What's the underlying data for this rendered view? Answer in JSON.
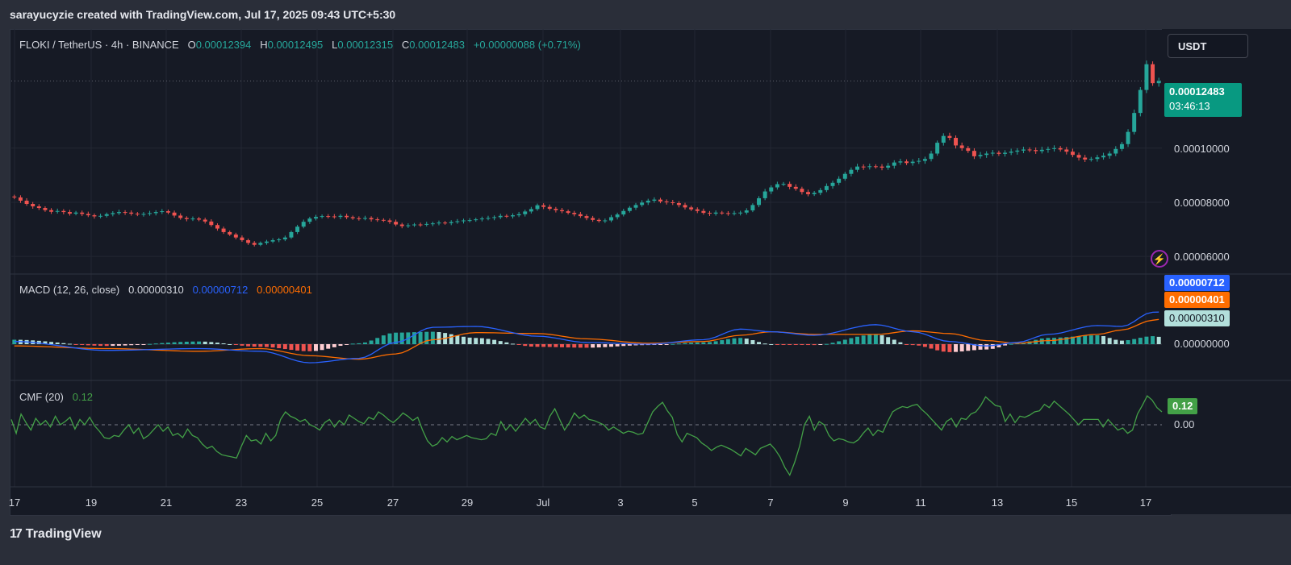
{
  "attribution": "sarayucyzie created with TradingView.com, Jul 17, 2025 09:43 UTC+5:30",
  "symbol": {
    "name": "FLOKI / TetherUS · 4h · BINANCE",
    "o_label": "O",
    "o_value": "0.00012394",
    "h_label": "H",
    "h_value": "0.00012495",
    "l_label": "L",
    "l_value": "0.00012315",
    "c_label": "C",
    "c_value": "0.00012483",
    "change": "+0.00000088 (+0.71%)"
  },
  "currency_button": "USDT",
  "last_price": {
    "value": "0.00012483",
    "countdown": "03:46:13"
  },
  "macd": {
    "label": "MACD (12, 26, close)",
    "histogram": "0.00000310",
    "macd_line": "0.00000712",
    "signal_line": "0.00000401",
    "zero_label": "0.00000000"
  },
  "cmf": {
    "label": "CMF (20)",
    "value": "0.12",
    "zero_label": "0.00"
  },
  "footer": {
    "brand": "TradingView"
  },
  "colors": {
    "up": "#26a69a",
    "down": "#ef5350",
    "macd": "#2962ff",
    "signal": "#ff6d00",
    "cmf": "#43a047",
    "hist_up_strong": "#26a69a",
    "hist_up_weak": "#b2dfdb",
    "hist_down_strong": "#ef5350",
    "hist_down_weak": "#ffcdd2"
  },
  "chart_data": [
    {
      "type": "candlestick",
      "title": "FLOKI / TetherUS · 4h · BINANCE",
      "x_tick_labels": [
        "17",
        "19",
        "21",
        "23",
        "25",
        "27",
        "29",
        "Jul",
        "3",
        "5",
        "7",
        "9",
        "11",
        "13",
        "15",
        "17"
      ],
      "y_tick_labels": [
        "0.00010000",
        "0.00008000",
        "0.00006000"
      ],
      "y_range": [
        5.35e-05,
        0.000144
      ],
      "close_series": [
        8.18e-05,
        8.06e-05,
        7.94e-05,
        7.85e-05,
        7.79e-05,
        7.71e-05,
        7.65e-05,
        7.68e-05,
        7.64e-05,
        7.58e-05,
        7.62e-05,
        7.57e-05,
        7.52e-05,
        7.48e-05,
        7.5e-05,
        7.56e-05,
        7.6e-05,
        7.64e-05,
        7.62e-05,
        7.58e-05,
        7.55e-05,
        7.57e-05,
        7.6e-05,
        7.64e-05,
        7.67e-05,
        7.62e-05,
        7.51e-05,
        7.42e-05,
        7.38e-05,
        7.4e-05,
        7.36e-05,
        7.29e-05,
        7.16e-05,
        7.03e-05,
        6.9e-05,
        6.81e-05,
        6.7e-05,
        6.6e-05,
        6.5e-05,
        6.43e-05,
        6.5e-05,
        6.55e-05,
        6.6e-05,
        6.63e-05,
        6.7e-05,
        6.9e-05,
        7.1e-05,
        7.28e-05,
        7.4e-05,
        7.46e-05,
        7.49e-05,
        7.48e-05,
        7.46e-05,
        7.5e-05,
        7.45e-05,
        7.41e-05,
        7.4e-05,
        7.42e-05,
        7.37e-05,
        7.35e-05,
        7.33e-05,
        7.28e-05,
        7.18e-05,
        7.12e-05,
        7.15e-05,
        7.18e-05,
        7.17e-05,
        7.2e-05,
        7.22e-05,
        7.25e-05,
        7.23e-05,
        7.27e-05,
        7.3e-05,
        7.33e-05,
        7.34e-05,
        7.37e-05,
        7.4e-05,
        7.42e-05,
        7.45e-05,
        7.5e-05,
        7.48e-05,
        7.52e-05,
        7.56e-05,
        7.66e-05,
        7.75e-05,
        7.89e-05,
        7.83e-05,
        7.76e-05,
        7.71e-05,
        7.67e-05,
        7.61e-05,
        7.56e-05,
        7.49e-05,
        7.42e-05,
        7.35e-05,
        7.31e-05,
        7.33e-05,
        7.45e-05,
        7.55e-05,
        7.68e-05,
        7.8e-05,
        7.9e-05,
        7.99e-05,
        8.06e-05,
        8.1e-05,
        8.03e-05,
        8e-05,
        7.97e-05,
        7.9e-05,
        7.81e-05,
        7.74e-05,
        7.68e-05,
        7.61e-05,
        7.58e-05,
        7.62e-05,
        7.6e-05,
        7.58e-05,
        7.6e-05,
        7.62e-05,
        7.7e-05,
        7.9e-05,
        8.15e-05,
        8.4e-05,
        8.55e-05,
        8.67e-05,
        8.68e-05,
        8.57e-05,
        8.5e-05,
        8.38e-05,
        8.3e-05,
        8.35e-05,
        8.45e-05,
        8.6e-05,
        8.72e-05,
        8.87e-05,
        9.05e-05,
        9.2e-05,
        9.32e-05,
        9.3e-05,
        9.33e-05,
        9.32e-05,
        9.28e-05,
        9.35e-05,
        9.47e-05,
        9.51e-05,
        9.45e-05,
        9.5e-05,
        9.53e-05,
        9.6e-05,
        9.8e-05,
        0.000102,
        0.0001045,
        0.0001038,
        0.000101,
        0.0001,
        9.9e-05,
        9.7e-05,
        9.75e-05,
        9.8e-05,
        9.83e-05,
        9.79e-05,
        9.83e-05,
        9.87e-05,
        9.91e-05,
        9.95e-05,
        9.93e-05,
        9.89e-05,
        9.94e-05,
        9.97e-05,
        0.0001,
        9.95e-05,
        9.87e-05,
        9.75e-05,
        9.65e-05,
        9.58e-05,
        9.6e-05,
        9.66e-05,
        9.72e-05,
        9.8e-05,
        9.97e-05,
        0.0001015,
        0.000106,
        0.000113,
        0.0001215,
        0.000131,
        0.000124,
        0.0001248
      ]
    },
    {
      "type": "line",
      "title": "MACD (12, 26, close)",
      "y_tick_labels": [
        "0.00000000"
      ],
      "series": [
        {
          "name": "MACD",
          "anchors": [
            [
              0,
              0.3
            ],
            [
              15,
              -0.7
            ],
            [
              30,
              -0.5
            ],
            [
              40,
              -0.8
            ],
            [
              48,
              -2.1
            ],
            [
              56,
              -1.6
            ],
            [
              62,
              0.2
            ],
            [
              68,
              1.9
            ],
            [
              75,
              2.0
            ],
            [
              85,
              0.9
            ],
            [
              93,
              0.2
            ],
            [
              103,
              0.0
            ],
            [
              112,
              0.5
            ],
            [
              118,
              1.7
            ],
            [
              123,
              1.4
            ],
            [
              130,
              1.0
            ],
            [
              140,
              2.2
            ],
            [
              146,
              1.4
            ],
            [
              152,
              0.3
            ],
            [
              158,
              -0.2
            ],
            [
              163,
              0.2
            ],
            [
              168,
              1.1
            ],
            [
              176,
              2.1
            ],
            [
              180,
              2.0
            ],
            [
              185,
              3.6
            ],
            [
              190,
              3.8
            ],
            [
              198,
              3.3
            ],
            [
              205,
              2.4
            ],
            [
              215,
              1.0
            ],
            [
              222,
              -0.2
            ],
            [
              226,
              0.3
            ],
            [
              231,
              2.6
            ],
            [
              234,
              7.12
            ]
          ]
        },
        {
          "name": "Signal",
          "anchors": [
            [
              0,
              -0.2
            ],
            [
              15,
              -0.5
            ],
            [
              30,
              -0.8
            ],
            [
              40,
              -0.5
            ],
            [
              48,
              -1.3
            ],
            [
              56,
              -1.7
            ],
            [
              62,
              -1.1
            ],
            [
              68,
              0.5
            ],
            [
              75,
              1.3
            ],
            [
              85,
              1.2
            ],
            [
              93,
              0.6
            ],
            [
              103,
              0.1
            ],
            [
              112,
              0.3
            ],
            [
              118,
              1.0
            ],
            [
              123,
              1.4
            ],
            [
              130,
              1.1
            ],
            [
              140,
              1.1
            ],
            [
              146,
              1.5
            ],
            [
              152,
              1.2
            ],
            [
              158,
              0.4
            ],
            [
              163,
              0.1
            ],
            [
              168,
              0.4
            ],
            [
              176,
              1.1
            ],
            [
              180,
              1.6
            ],
            [
              185,
              2.7
            ],
            [
              190,
              3.6
            ],
            [
              198,
              3.4
            ],
            [
              205,
              3.0
            ],
            [
              215,
              2.1
            ],
            [
              222,
              0.9
            ],
            [
              226,
              0.4
            ],
            [
              231,
              1.2
            ],
            [
              234,
              4.01
            ]
          ]
        }
      ],
      "histogram_final": "0.00000310"
    },
    {
      "type": "line",
      "title": "CMF (20)",
      "y_tick_labels": [
        "0.00"
      ],
      "series": [
        {
          "name": "CMF",
          "values": [
            0.05,
            -0.08,
            0.1,
            0.02,
            -0.05,
            0.06,
            0.0,
            0.04,
            -0.02,
            0.08,
            0.0,
            0.03,
            0.07,
            -0.04,
            0.05,
            0.0,
            0.07,
            -0.01,
            -0.06,
            -0.12,
            -0.13,
            -0.1,
            -0.11,
            -0.05,
            0.0,
            -0.08,
            -0.03,
            -0.13,
            -0.1,
            -0.05,
            0.0,
            -0.06,
            -0.02,
            -0.1,
            -0.08,
            -0.12,
            -0.04,
            -0.1,
            -0.12,
            -0.18,
            -0.22,
            -0.2,
            -0.25,
            -0.28,
            -0.29,
            -0.3,
            -0.31,
            -0.2,
            -0.1,
            -0.15,
            -0.14,
            -0.18,
            -0.08,
            -0.15,
            -0.1,
            0.05,
            0.12,
            0.08,
            0.06,
            0.03,
            0.05,
            0.0,
            -0.02,
            -0.05,
            0.02,
            0.05,
            -0.02,
            0.04,
            0.0,
            0.09,
            0.06,
            0.03,
            0.01,
            0.07,
            0.05,
            0.12,
            0.09,
            0.05,
            0.02,
            0.06,
            0.11,
            0.08,
            0.04,
            0.07,
            -0.05,
            -0.15,
            -0.2,
            -0.18,
            -0.12,
            -0.16,
            -0.11,
            -0.14,
            -0.12,
            -0.1,
            -0.12,
            -0.13,
            -0.14,
            -0.13,
            -0.08,
            -0.1,
            0.03,
            -0.05,
            0.0,
            -0.06,
            0.0,
            0.06,
            0.01,
            0.05,
            -0.02,
            -0.04,
            0.08,
            0.15,
            0.05,
            -0.05,
            0.02,
            0.11,
            0.06,
            0.09,
            0.05,
            0.04,
            0.02,
            0.0,
            -0.05,
            -0.02,
            -0.05,
            -0.08,
            -0.06,
            -0.07,
            -0.09,
            -0.08,
            0.02,
            0.12,
            0.17,
            0.21,
            0.13,
            0.07,
            -0.09,
            -0.16,
            -0.08,
            -0.1,
            -0.12,
            -0.17,
            -0.2,
            -0.24,
            -0.21,
            -0.19,
            -0.21,
            -0.23,
            -0.26,
            -0.29,
            -0.22,
            -0.25,
            -0.28,
            -0.22,
            -0.2,
            -0.18,
            -0.23,
            -0.3,
            -0.4,
            -0.47,
            -0.35,
            -0.2,
            0.0,
            0.08,
            -0.05,
            0.03,
            0.0,
            -0.1,
            -0.15,
            -0.13,
            -0.14,
            -0.16,
            -0.17,
            -0.14,
            -0.08,
            -0.03,
            -0.1,
            -0.05,
            -0.07,
            0.03,
            0.12,
            0.15,
            0.17,
            0.16,
            0.18,
            0.19,
            0.14,
            0.1,
            0.05,
            0.0,
            -0.05,
            0.03,
            0.06,
            -0.02,
            0.06,
            0.05,
            0.1,
            0.12,
            0.18,
            0.26,
            0.22,
            0.18,
            0.17,
            0.03,
            0.1,
            0.02,
            0.08,
            0.07,
            0.09,
            0.12,
            0.13,
            0.19,
            0.16,
            0.22,
            0.18,
            0.14,
            0.1,
            0.05,
            0.0,
            0.05,
            0.05,
            0.05,
            0.05,
            -0.02,
            0.05,
            0.0,
            -0.05,
            -0.03,
            -0.08,
            -0.05,
            0.1,
            0.18,
            0.27,
            0.23,
            0.16,
            0.12
          ]
        }
      ]
    }
  ]
}
